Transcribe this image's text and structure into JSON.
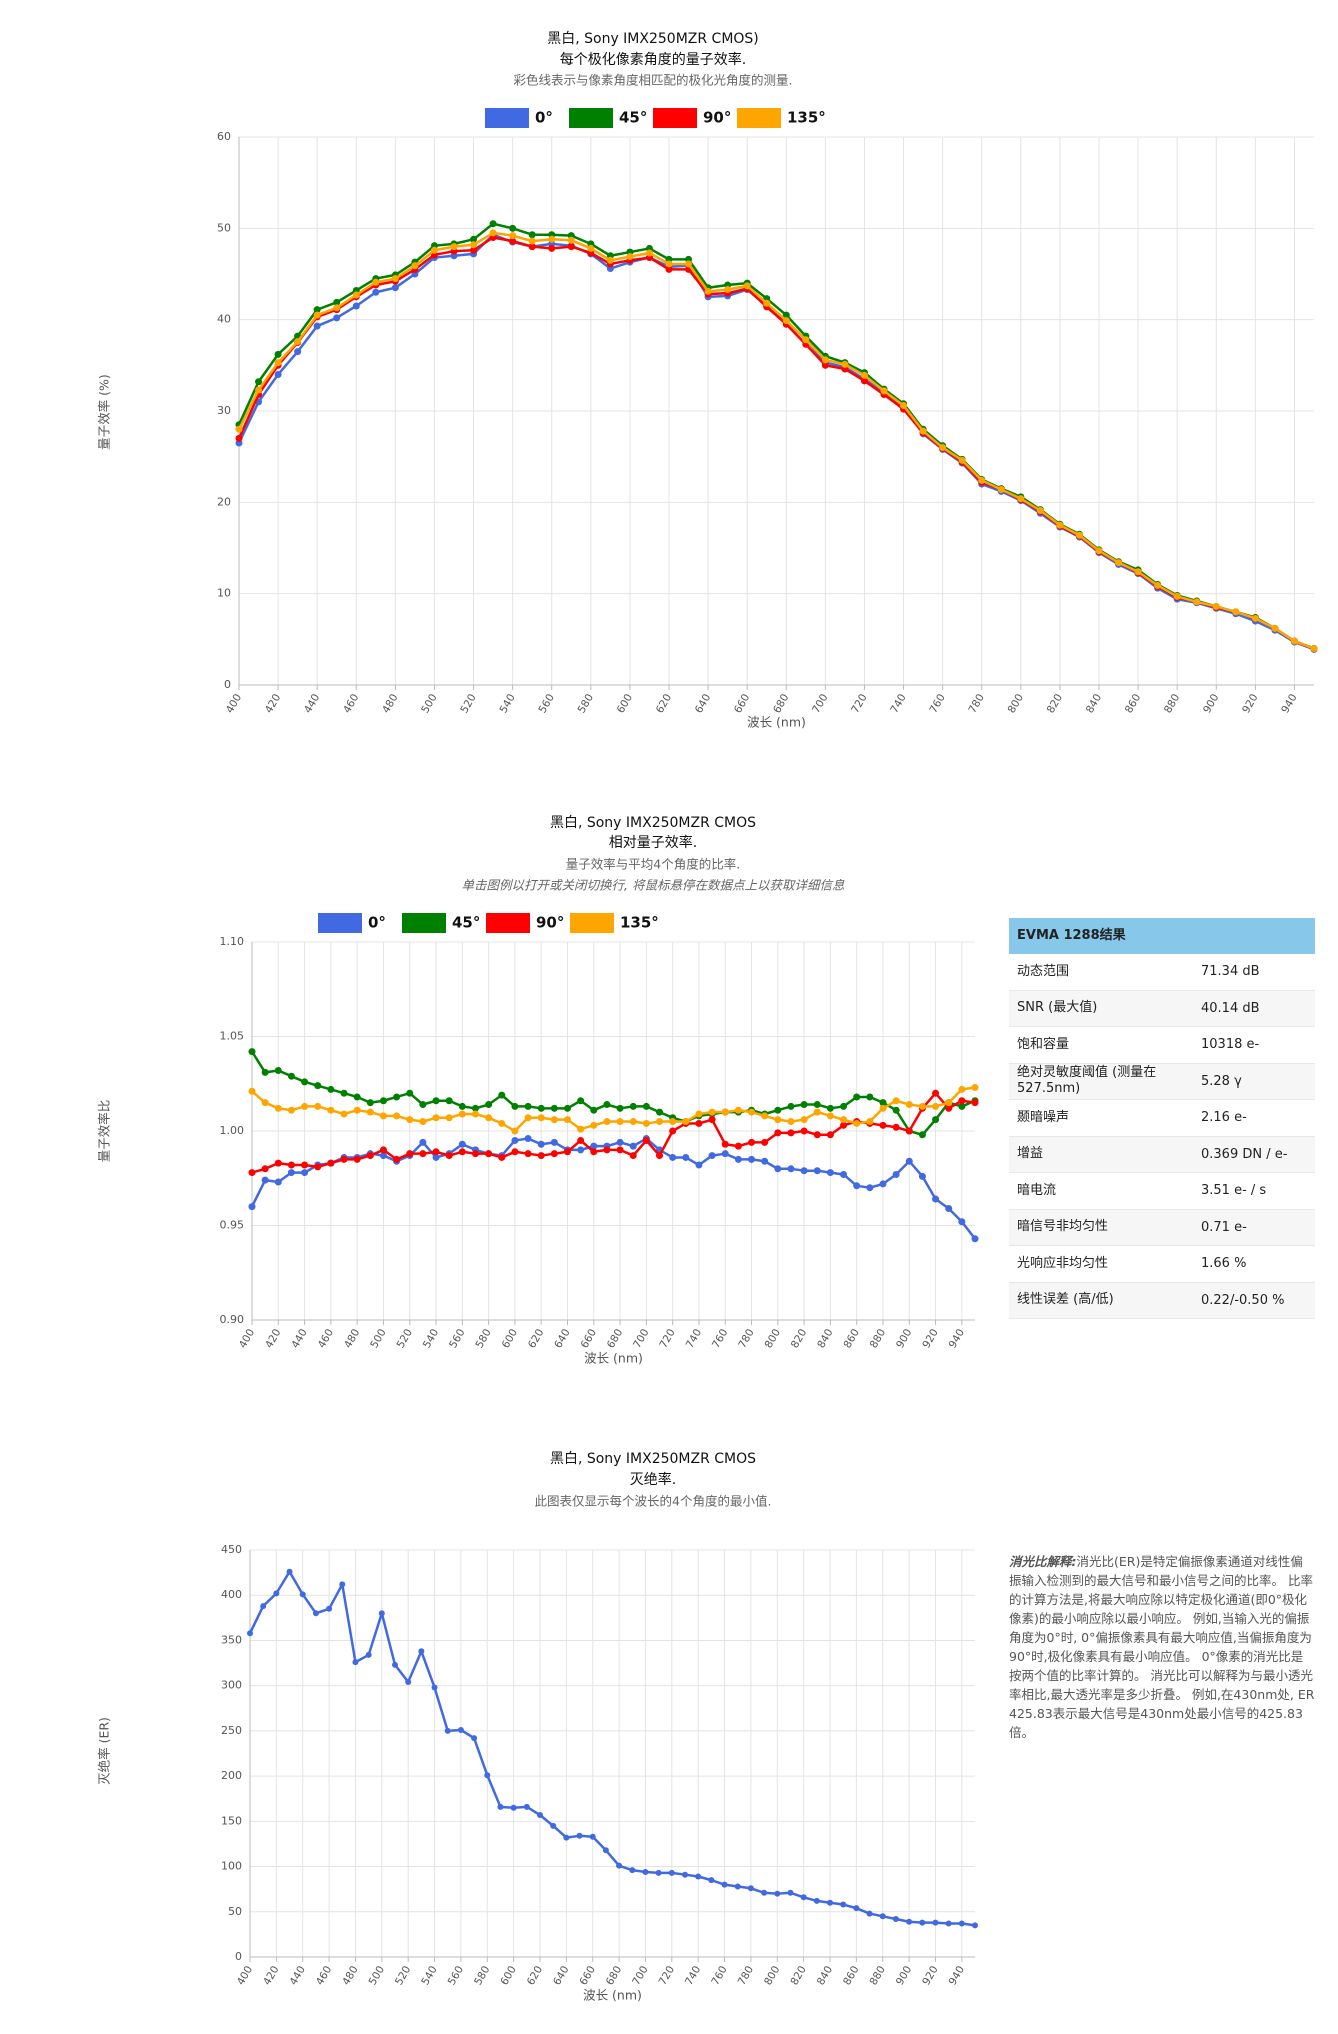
{
  "chart_data": [
    {
      "type": "line",
      "title": "黑白, Sony IMX250MZR CMOS)",
      "subtitle": "每个极化像素角度的量子效率.",
      "description": "彩色线表示与像素角度相匹配的极化光角度的测量.",
      "x_label": "波长 (nm)",
      "y_label": "量子效率 (%)",
      "x": [
        400,
        410,
        420,
        430,
        440,
        450,
        460,
        470,
        480,
        490,
        500,
        510,
        520,
        530,
        540,
        550,
        560,
        570,
        580,
        590,
        600,
        610,
        620,
        630,
        640,
        650,
        660,
        670,
        680,
        690,
        700,
        710,
        720,
        730,
        740,
        750,
        760,
        770,
        780,
        790,
        800,
        810,
        820,
        830,
        840,
        850,
        860,
        870,
        880,
        890,
        900,
        910,
        920,
        930,
        940,
        950
      ],
      "xlim": [
        400,
        950
      ],
      "xticks": [
        400,
        420,
        440,
        460,
        480,
        500,
        520,
        540,
        560,
        580,
        600,
        620,
        640,
        660,
        680,
        700,
        720,
        740,
        760,
        780,
        800,
        820,
        840,
        860,
        880,
        900,
        920,
        940
      ],
      "ylim": [
        0,
        60
      ],
      "yticks": [
        0,
        10,
        20,
        30,
        40,
        50,
        60
      ],
      "grid": true,
      "series": [
        {
          "name": "0°",
          "color": "#4169e1",
          "values": [
            26.5,
            31,
            34,
            36.5,
            39.3,
            40.2,
            41.5,
            43,
            43.5,
            45,
            46.8,
            47,
            47.2,
            49.3,
            48.5,
            48,
            48.3,
            48.1,
            47.2,
            45.6,
            46.3,
            46.8,
            45.8,
            45.9,
            42.5,
            42.6,
            43.3,
            41.5,
            39.8,
            37.8,
            35.3,
            34.8,
            33.5,
            32,
            30.5,
            27.5,
            25.8,
            24.3,
            22,
            21.2,
            20.2,
            18.8,
            17.3,
            16.2,
            14.5,
            13.2,
            12.2,
            10.6,
            9.4,
            9,
            8.4,
            7.8,
            7,
            6,
            4.7,
            3.9
          ]
        },
        {
          "name": "45°",
          "color": "#008000",
          "values": [
            28.5,
            33.2,
            36.2,
            38.2,
            41.1,
            41.9,
            43.2,
            44.5,
            44.9,
            46.3,
            48.1,
            48.3,
            48.8,
            50.5,
            50,
            49.3,
            49.3,
            49.2,
            48.3,
            47,
            47.4,
            47.8,
            46.6,
            46.6,
            43.5,
            43.8,
            44,
            42.3,
            40.5,
            38.2,
            36,
            35.3,
            34.2,
            32.4,
            30.8,
            28,
            26.2,
            24.7,
            22.5,
            21.5,
            20.6,
            19.2,
            17.6,
            16.5,
            14.8,
            13.5,
            12.6,
            11,
            9.8,
            9.2,
            8.6,
            8,
            7.4,
            6.2,
            4.8,
            4.0
          ]
        },
        {
          "name": "90°",
          "color": "#ff0000",
          "values": [
            27,
            31.8,
            35,
            37.5,
            40.3,
            41.1,
            42.5,
            43.8,
            44.2,
            45.5,
            47.1,
            47.5,
            47.6,
            49,
            48.6,
            48,
            47.8,
            48,
            47.3,
            46.1,
            46.5,
            46.8,
            45.5,
            45.5,
            42.8,
            42.9,
            43.4,
            41.4,
            39.5,
            37.3,
            35,
            34.6,
            33.3,
            31.8,
            30.2,
            27.6,
            25.9,
            24.4,
            22.2,
            21.4,
            20.3,
            19,
            17.4,
            16.3,
            14.6,
            13.4,
            12.3,
            10.8,
            9.6,
            9.1,
            8.5,
            8,
            7.3,
            6.2,
            4.8,
            4.0
          ]
        },
        {
          "name": "135°",
          "color": "#ffa500",
          "values": [
            28,
            32.3,
            35.3,
            37.6,
            40.5,
            41.3,
            42.7,
            44.1,
            44.5,
            45.9,
            47.6,
            48,
            48.2,
            49.5,
            49.2,
            48.6,
            48.8,
            48.7,
            47.8,
            46.5,
            46.9,
            47.3,
            46.1,
            46.1,
            43.1,
            43.3,
            43.7,
            41.8,
            39.9,
            37.8,
            35.6,
            35.1,
            33.9,
            32.2,
            30.6,
            27.8,
            26,
            24.6,
            22.4,
            21.4,
            20.4,
            19.1,
            17.5,
            16.4,
            14.7,
            13.4,
            12.4,
            10.9,
            9.7,
            9.1,
            8.6,
            8,
            7.3,
            6.2,
            4.8,
            4.0
          ]
        }
      ]
    },
    {
      "type": "line",
      "title": "黑白, Sony IMX250MZR CMOS",
      "subtitle": "相对量子效率.",
      "description": "量子效率与平均4个角度的比率.",
      "annotation": "单击图例以打开或关闭切换行, 将鼠标悬停在数据点上以获取详细信息",
      "x_label": "波长 (nm)",
      "y_label": "量子效率比",
      "x": [
        400,
        410,
        420,
        430,
        440,
        450,
        460,
        470,
        480,
        490,
        500,
        510,
        520,
        530,
        540,
        550,
        560,
        570,
        580,
        590,
        600,
        610,
        620,
        630,
        640,
        650,
        660,
        670,
        680,
        690,
        700,
        710,
        720,
        730,
        740,
        750,
        760,
        770,
        780,
        790,
        800,
        810,
        820,
        830,
        840,
        850,
        860,
        870,
        880,
        890,
        900,
        910,
        920,
        930,
        940,
        950
      ],
      "xlim": [
        400,
        950
      ],
      "xticks": [
        400,
        420,
        440,
        460,
        480,
        500,
        520,
        540,
        560,
        580,
        600,
        620,
        640,
        660,
        680,
        700,
        720,
        740,
        760,
        780,
        800,
        820,
        840,
        860,
        880,
        900,
        920,
        940
      ],
      "ylim": [
        0.9,
        1.1
      ],
      "yticks": [
        {
          "value": 0.9,
          "label": "0.90"
        },
        0.95,
        {
          "value": 1.0,
          "label": "1.00"
        },
        1.05,
        {
          "value": 1.1,
          "label": "1.10"
        }
      ],
      "grid": true,
      "series": [
        {
          "name": "0°",
          "color": "#4169e1",
          "values": [
            0.96,
            0.974,
            0.973,
            0.978,
            0.978,
            0.982,
            0.983,
            0.986,
            0.986,
            0.988,
            0.987,
            0.984,
            0.987,
            0.994,
            0.986,
            0.988,
            0.993,
            0.99,
            0.988,
            0.987,
            0.995,
            0.996,
            0.993,
            0.994,
            0.99,
            0.99,
            0.992,
            0.992,
            0.994,
            0.992,
            0.996,
            0.99,
            0.986,
            0.986,
            0.982,
            0.987,
            0.988,
            0.985,
            0.985,
            0.984,
            0.98,
            0.98,
            0.979,
            0.979,
            0.978,
            0.977,
            0.971,
            0.97,
            0.972,
            0.977,
            0.984,
            0.976,
            0.964,
            0.959,
            0.952,
            0.943
          ]
        },
        {
          "name": "45°",
          "color": "#008000",
          "values": [
            1.042,
            1.031,
            1.032,
            1.029,
            1.026,
            1.024,
            1.022,
            1.02,
            1.018,
            1.015,
            1.016,
            1.018,
            1.02,
            1.014,
            1.016,
            1.016,
            1.013,
            1.012,
            1.014,
            1.019,
            1.013,
            1.013,
            1.012,
            1.012,
            1.012,
            1.016,
            1.011,
            1.014,
            1.012,
            1.013,
            1.013,
            1.01,
            1.007,
            1.005,
            1.008,
            1.009,
            1.01,
            1.01,
            1.011,
            1.009,
            1.011,
            1.013,
            1.014,
            1.014,
            1.012,
            1.013,
            1.018,
            1.018,
            1.015,
            1.011,
            1.0,
            0.998,
            1.006,
            1.015,
            1.013,
            1.016
          ]
        },
        {
          "name": "90°",
          "color": "#ff0000",
          "values": [
            0.978,
            0.98,
            0.983,
            0.982,
            0.982,
            0.981,
            0.983,
            0.985,
            0.985,
            0.987,
            0.99,
            0.985,
            0.988,
            0.988,
            0.989,
            0.987,
            0.989,
            0.988,
            0.988,
            0.986,
            0.989,
            0.988,
            0.987,
            0.988,
            0.989,
            0.995,
            0.989,
            0.99,
            0.99,
            0.987,
            0.995,
            0.987,
            1.0,
            1.004,
            1.004,
            1.006,
            0.993,
            0.992,
            0.994,
            0.994,
            0.999,
            0.999,
            1.0,
            0.998,
            0.998,
            1.003,
            1.005,
            1.004,
            1.003,
            1.002,
            1.0,
            1.012,
            1.02,
            1.012,
            1.016,
            1.015
          ]
        },
        {
          "name": "135°",
          "color": "#ffa500",
          "values": [
            1.021,
            1.015,
            1.012,
            1.011,
            1.013,
            1.013,
            1.011,
            1.009,
            1.011,
            1.01,
            1.008,
            1.008,
            1.006,
            1.005,
            1.007,
            1.007,
            1.009,
            1.009,
            1.007,
            1.004,
            1.0,
            1.007,
            1.007,
            1.006,
            1.006,
            1.001,
            1.003,
            1.005,
            1.005,
            1.005,
            1.004,
            1.005,
            1.005,
            1.005,
            1.009,
            1.01,
            1.01,
            1.011,
            1.01,
            1.008,
            1.006,
            1.005,
            1.006,
            1.01,
            1.008,
            1.006,
            1.004,
            1.005,
            1.012,
            1.016,
            1.014,
            1.013,
            1.013,
            1.015,
            1.022,
            1.023
          ]
        }
      ]
    },
    {
      "type": "line",
      "title": "黑白, Sony IMX250MZR CMOS",
      "subtitle": "灭绝率.",
      "description": "此图表仅显示每个波长的4个角度的最小值.",
      "x_label": "波长 (nm)",
      "y_label": "灭绝率 (ER)",
      "x": [
        400,
        410,
        420,
        430,
        440,
        450,
        460,
        470,
        480,
        490,
        500,
        510,
        520,
        530,
        540,
        550,
        560,
        570,
        580,
        590,
        600,
        610,
        620,
        630,
        640,
        650,
        660,
        670,
        680,
        690,
        700,
        710,
        720,
        730,
        740,
        750,
        760,
        770,
        780,
        790,
        800,
        810,
        820,
        830,
        840,
        850,
        860,
        870,
        880,
        890,
        900,
        910,
        920,
        930,
        940,
        950
      ],
      "xlim": [
        400,
        950
      ],
      "xticks": [
        400,
        420,
        440,
        460,
        480,
        500,
        520,
        540,
        560,
        580,
        600,
        620,
        640,
        660,
        680,
        700,
        720,
        740,
        760,
        780,
        800,
        820,
        840,
        860,
        880,
        900,
        920,
        940
      ],
      "ylim": [
        0,
        450
      ],
      "yticks": [
        0,
        50,
        100,
        150,
        200,
        250,
        300,
        350,
        400,
        450
      ],
      "grid": true,
      "color": "#4169e1",
      "values": [
        358,
        388,
        402,
        426,
        401,
        380,
        385,
        412,
        326,
        334,
        380,
        323,
        304,
        338,
        298,
        250,
        251,
        242,
        201,
        166,
        165,
        166,
        157,
        145,
        132,
        134,
        133,
        118,
        101,
        96,
        94,
        93,
        93,
        91,
        89,
        85,
        80,
        78,
        76,
        71,
        70,
        71,
        66,
        62,
        60,
        58,
        54,
        48,
        45,
        42,
        39,
        38,
        38,
        37,
        37,
        35
      ]
    }
  ],
  "table": {
    "title": "EVMA 1288结果",
    "rows": [
      [
        "动态范围",
        "71.34 dB"
      ],
      [
        "SNR (最大值)",
        "40.14 dB"
      ],
      [
        "饱和容量",
        "10318 e-"
      ],
      [
        "绝对灵敏度阈值 (测量在527.5nm)",
        "5.28 γ"
      ],
      [
        "颞暗噪声",
        "2.16 e-"
      ],
      [
        "增益",
        "0.369 DN / e-"
      ],
      [
        "暗电流",
        "3.51 e- / s"
      ],
      [
        "暗信号非均匀性",
        "0.71 e-"
      ],
      [
        "光响应非均匀性",
        "1.66 %"
      ],
      [
        "线性误差 (高/低)",
        "0.22/-0.50 %"
      ]
    ]
  },
  "note": {
    "heading": "消光比解释:",
    "text": "消光比(ER)是特定偏振像素通道对线性偏振输入检测到的最大信号和最小信号之间的比率。 比率的计算方法是,将最大响应除以特定极化通道(即0°极化像素)的最小响应除以最小响应。 例如,当输入光的偏振角度为0°时, 0°偏振像素具有最大响应值,当偏振角度为90°时,极化像素具有最小响应值。 0°像素的消光比是按两个值的比率计算的。 消光比可以解释为与最小透光率相比,最大透光率是多少折叠。 例如,在430nm处, ER 425.83表示最大信号是430nm处最小信号的425.83倍。"
  }
}
